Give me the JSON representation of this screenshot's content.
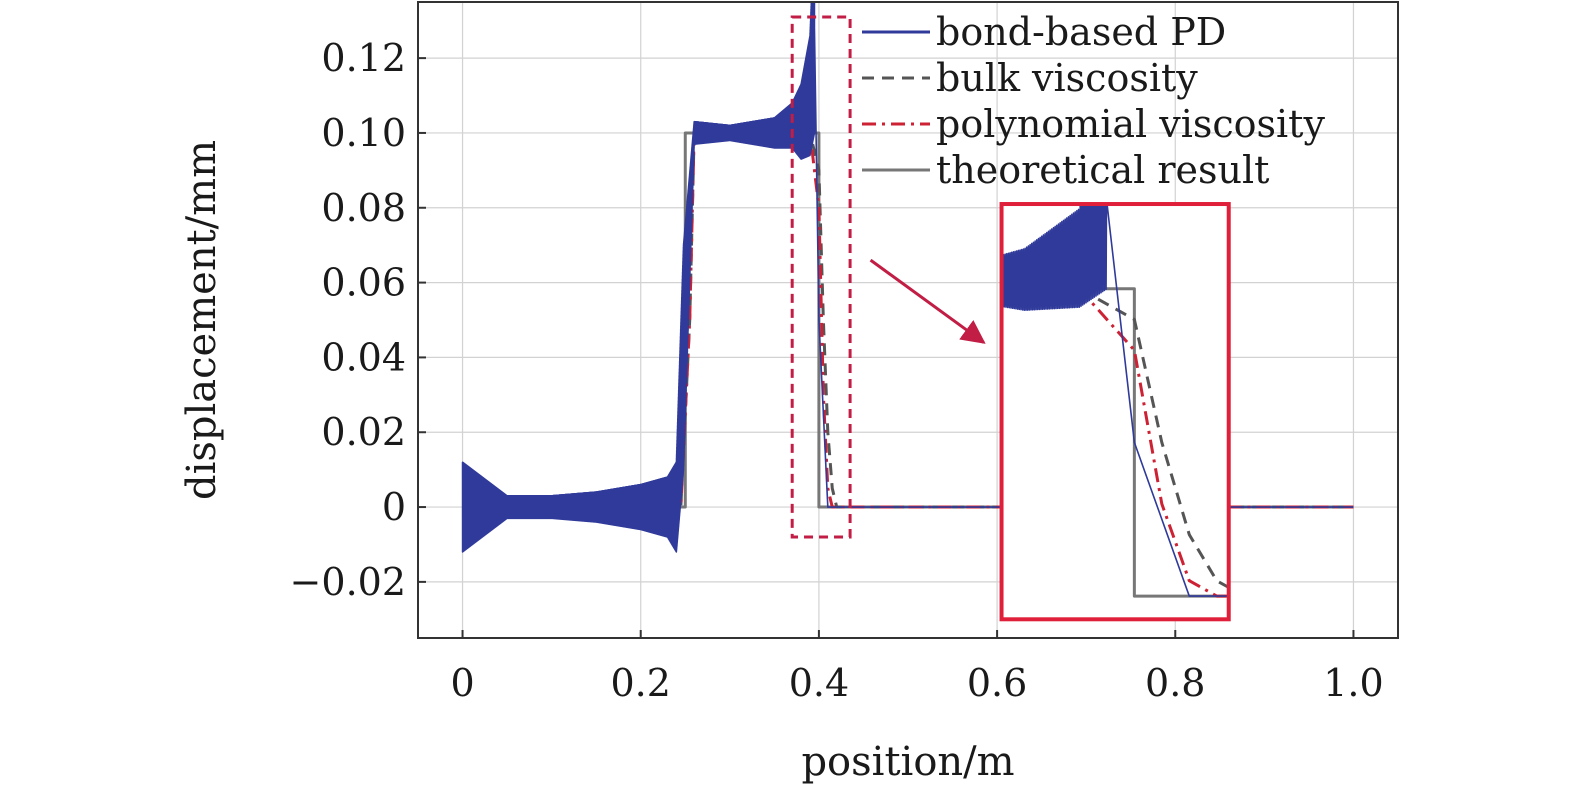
{
  "chart_data": {
    "type": "line",
    "xlabel": "position/m",
    "ylabel": "displacement/mm",
    "xlim": [
      -0.05,
      1.05
    ],
    "ylim": [
      -0.035,
      0.135
    ],
    "grid": true,
    "legend_position": "top-right",
    "x_ticks": [
      0,
      0.2,
      0.4,
      0.6,
      0.8,
      1.0
    ],
    "x_tick_labels": [
      "0",
      "0.2",
      "0.4",
      "0.6",
      "0.8",
      "1.0"
    ],
    "y_ticks": [
      -0.02,
      0,
      0.02,
      0.04,
      0.06,
      0.08,
      0.1,
      0.12
    ],
    "y_tick_labels": [
      "−0.02",
      "0",
      "0.02",
      "0.04",
      "0.06",
      "0.08",
      "0.10",
      "0.12"
    ],
    "series": [
      {
        "name": "bond-based PD",
        "style": "solid",
        "color": "#2f3a9a",
        "x": [
          0,
          0.05,
          0.1,
          0.15,
          0.2,
          0.24,
          0.25,
          0.26,
          0.3,
          0.35,
          0.38,
          0.39,
          0.395,
          0.4,
          0.41,
          0.45,
          1.0
        ],
        "y": [
          0,
          0,
          0,
          0,
          0,
          0,
          0.05,
          0.1,
          0.1,
          0.1,
          0.103,
          0.11,
          0.128,
          0.05,
          0,
          0,
          0
        ],
        "oscillation_envelope": {
          "x": [
            0,
            0.05,
            0.1,
            0.15,
            0.2,
            0.23,
            0.24,
            0.248,
            0.26,
            0.3,
            0.35,
            0.37,
            0.38,
            0.39,
            0.395
          ],
          "amplitude": [
            0.012,
            0.003,
            0.003,
            0.004,
            0.006,
            0.008,
            0.012,
            0.03,
            0.003,
            0.002,
            0.004,
            0.006,
            0.01,
            0.016,
            0.028
          ]
        }
      },
      {
        "name": "bulk viscosity",
        "style": "dashed",
        "color": "#555555",
        "x": [
          0,
          0.245,
          0.255,
          0.26,
          0.39,
          0.4,
          0.405,
          0.41,
          0.415,
          0.42,
          1.0
        ],
        "y": [
          0,
          0,
          0.05,
          0.1,
          0.1,
          0.09,
          0.05,
          0.02,
          0.005,
          0,
          0
        ]
      },
      {
        "name": "polynomial viscosity",
        "style": "dashdot",
        "color": "#cc2233",
        "x": [
          0,
          0.245,
          0.255,
          0.26,
          0.39,
          0.4,
          0.405,
          0.41,
          0.415,
          1.0
        ],
        "y": [
          0,
          0,
          0.05,
          0.1,
          0.1,
          0.08,
          0.03,
          0.005,
          0,
          0
        ]
      },
      {
        "name": "theoretical result",
        "style": "solid",
        "color": "#777777",
        "x": [
          0,
          0.25,
          0.25,
          0.4,
          0.4,
          1.0
        ],
        "y": [
          0,
          0,
          0.1,
          0.1,
          0,
          0
        ]
      }
    ],
    "zoom_inset": {
      "source_region": {
        "x": [
          0.37,
          0.435
        ],
        "y": [
          -0.008,
          0.131
        ]
      },
      "inset_region": {
        "x": [
          0.605,
          0.86
        ],
        "y": [
          -0.03,
          0.081
        ]
      },
      "inset_view": {
        "x": [
          0.378,
          0.415
        ],
        "y": [
          -0.003,
          0.123
        ]
      }
    }
  }
}
